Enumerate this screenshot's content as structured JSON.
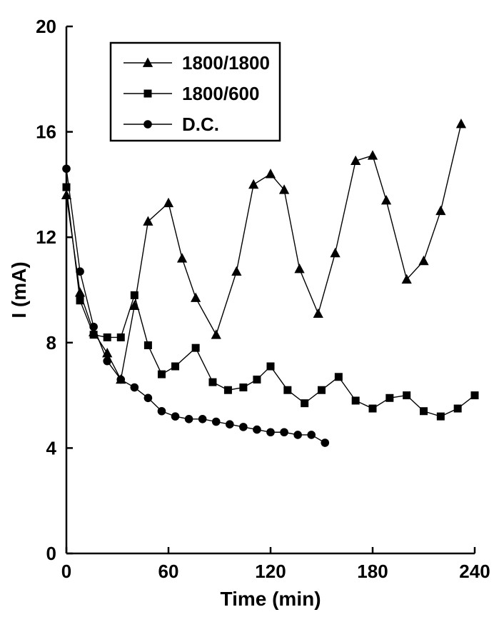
{
  "chart_data": {
    "type": "line",
    "title": "",
    "xlabel": "Time (min)",
    "ylabel": "I (mA)",
    "xlim": [
      0,
      240
    ],
    "ylim": [
      0,
      20
    ],
    "xticks": [
      0,
      60,
      120,
      180,
      240
    ],
    "yticks": [
      0,
      4,
      8,
      12,
      16,
      20
    ],
    "grid": false,
    "legend_position": "top-left-inside",
    "colors": {
      "series": "#000000",
      "background": "#ffffff"
    },
    "series": [
      {
        "name": "1800/1800",
        "marker": "triangle",
        "x": [
          0,
          8,
          16,
          24,
          32,
          40,
          48,
          60,
          68,
          76,
          88,
          100,
          110,
          120,
          128,
          137,
          148,
          158,
          170,
          180,
          188,
          200,
          210,
          220,
          232
        ],
        "y": [
          13.6,
          9.9,
          8.4,
          7.6,
          6.6,
          9.4,
          12.6,
          13.3,
          11.2,
          9.7,
          8.3,
          10.7,
          14.0,
          14.4,
          13.8,
          10.8,
          9.1,
          11.4,
          14.9,
          15.1,
          13.4,
          10.4,
          11.1,
          13.0,
          16.3
        ]
      },
      {
        "name": "1800/600",
        "marker": "square",
        "x": [
          0,
          8,
          16,
          24,
          32,
          40,
          48,
          56,
          64,
          76,
          86,
          95,
          104,
          112,
          120,
          130,
          140,
          150,
          160,
          170,
          180,
          190,
          200,
          210,
          220,
          230,
          240
        ],
        "y": [
          13.9,
          9.6,
          8.3,
          8.2,
          8.2,
          9.8,
          7.9,
          6.8,
          7.1,
          7.8,
          6.5,
          6.2,
          6.3,
          6.6,
          7.1,
          6.2,
          5.7,
          6.2,
          6.7,
          5.8,
          5.5,
          5.9,
          6.0,
          5.4,
          5.2,
          5.5,
          6.0
        ]
      },
      {
        "name": "D.C.",
        "marker": "circle",
        "x": [
          0,
          8,
          16,
          24,
          32,
          40,
          48,
          56,
          64,
          72,
          80,
          88,
          96,
          104,
          112,
          120,
          128,
          136,
          144,
          152
        ],
        "y": [
          14.6,
          10.7,
          8.6,
          7.3,
          6.6,
          6.3,
          5.9,
          5.4,
          5.2,
          5.1,
          5.1,
          5.0,
          4.9,
          4.8,
          4.7,
          4.6,
          4.6,
          4.5,
          4.5,
          4.2
        ]
      }
    ]
  }
}
